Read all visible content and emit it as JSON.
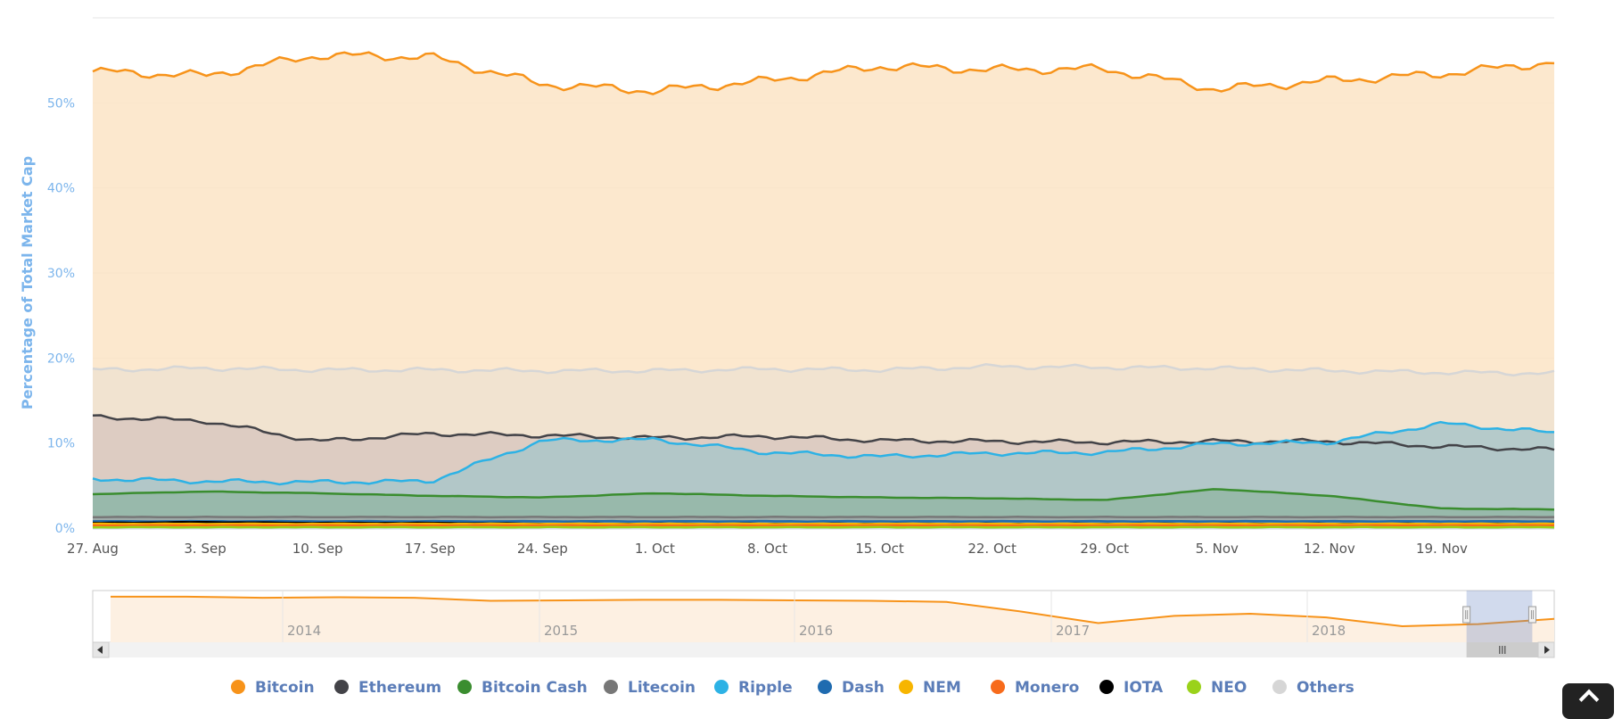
{
  "chart_data": {
    "type": "area",
    "stacked": true,
    "ylabel": "Percentage of Total Market Cap",
    "ylim": [
      0,
      60
    ],
    "y_ticks": [
      "0%",
      "10%",
      "20%",
      "30%",
      "40%",
      "50%"
    ],
    "x_tick_labels": [
      "27. Aug",
      "3. Sep",
      "10. Sep",
      "17. Sep",
      "24. Sep",
      "1. Oct",
      "8. Oct",
      "15. Oct",
      "22. Oct",
      "29. Oct",
      "5. Nov",
      "12. Nov",
      "19. Nov"
    ],
    "x_days": [
      0,
      7,
      14,
      21,
      28,
      35,
      42,
      49,
      56,
      63,
      70,
      77,
      84,
      91
    ],
    "grid": true,
    "legend_position": "bottom",
    "series_top_values": [
      {
        "name": "Bitcoin",
        "color": "#f7931a",
        "values": [
          53.7,
          53.2,
          55.6,
          55.4,
          52.2,
          51.4,
          52.6,
          54.3,
          53.9,
          54.0,
          51.6,
          52.6,
          53.4,
          54.8
        ]
      },
      {
        "name": "Ethereum",
        "color": "#434348",
        "values": [
          13.1,
          12.6,
          10.2,
          11.1,
          10.9,
          10.6,
          10.8,
          10.3,
          10.2,
          10.1,
          10.2,
          10.2,
          9.6,
          9.2
        ]
      },
      {
        "name": "Bitcoin Cash",
        "color": "#3a8d2f",
        "values": [
          4.0,
          4.3,
          4.1,
          3.8,
          3.6,
          4.1,
          3.8,
          3.6,
          3.5,
          3.3,
          4.6,
          3.8,
          2.3,
          2.2
        ]
      },
      {
        "name": "Litecoin",
        "color": "#777777",
        "values": [
          1.3,
          1.3,
          1.3,
          1.3,
          1.3,
          1.3,
          1.3,
          1.3,
          1.3,
          1.3,
          1.3,
          1.3,
          1.3,
          1.3
        ]
      },
      {
        "name": "Ripple",
        "color": "#2db2e5",
        "values": [
          5.8,
          5.5,
          5.4,
          5.5,
          10.3,
          10.4,
          8.9,
          8.4,
          8.8,
          8.9,
          9.9,
          10.1,
          12.3,
          11.2
        ]
      },
      {
        "name": "Dash",
        "color": "#1f6bb0",
        "values": [
          0.8,
          0.8,
          0.8,
          0.8,
          0.8,
          0.8,
          0.8,
          0.8,
          0.8,
          0.8,
          0.8,
          0.8,
          0.8,
          0.8
        ]
      },
      {
        "name": "NEM",
        "color": "#f7b500",
        "values": [
          0.5,
          0.5,
          0.5,
          0.5,
          0.5,
          0.5,
          0.5,
          0.5,
          0.5,
          0.5,
          0.5,
          0.5,
          0.5,
          0.5
        ]
      },
      {
        "name": "Monero",
        "color": "#f76b1c",
        "values": [
          0.3,
          0.3,
          0.3,
          0.3,
          0.3,
          0.3,
          0.3,
          0.3,
          0.3,
          0.3,
          0.3,
          0.3,
          0.3,
          0.3
        ]
      },
      {
        "name": "IOTA",
        "color": "#000000",
        "values": [
          0.6,
          0.7,
          0.6,
          0.6,
          0.5,
          0.5,
          0.5,
          0.5,
          0.5,
          0.5,
          0.5,
          0.5,
          0.5,
          0.5
        ]
      },
      {
        "name": "NEO",
        "color": "#9ad21a",
        "values": [
          0.1,
          0.1,
          0.1,
          0.1,
          0.1,
          0.1,
          0.1,
          0.1,
          0.1,
          0.1,
          0.1,
          0.1,
          0.1,
          0.1
        ]
      },
      {
        "name": "Others",
        "color": "#d6d6d6",
        "values": [
          18.6,
          18.8,
          18.6,
          18.6,
          18.5,
          18.5,
          18.7,
          18.6,
          19.0,
          18.9,
          18.8,
          18.5,
          18.3,
          18.2
        ]
      }
    ],
    "navigator": {
      "year_labels": [
        "2014",
        "2015",
        "2016",
        "2017",
        "2018"
      ],
      "series_name": "Bitcoin",
      "values": [
        95,
        95,
        93,
        94,
        93,
        87,
        88,
        89,
        89,
        88,
        87,
        85,
        66,
        44,
        58,
        62,
        55,
        38,
        42,
        52
      ],
      "selection_range": [
        0.94,
        0.985
      ]
    }
  }
}
